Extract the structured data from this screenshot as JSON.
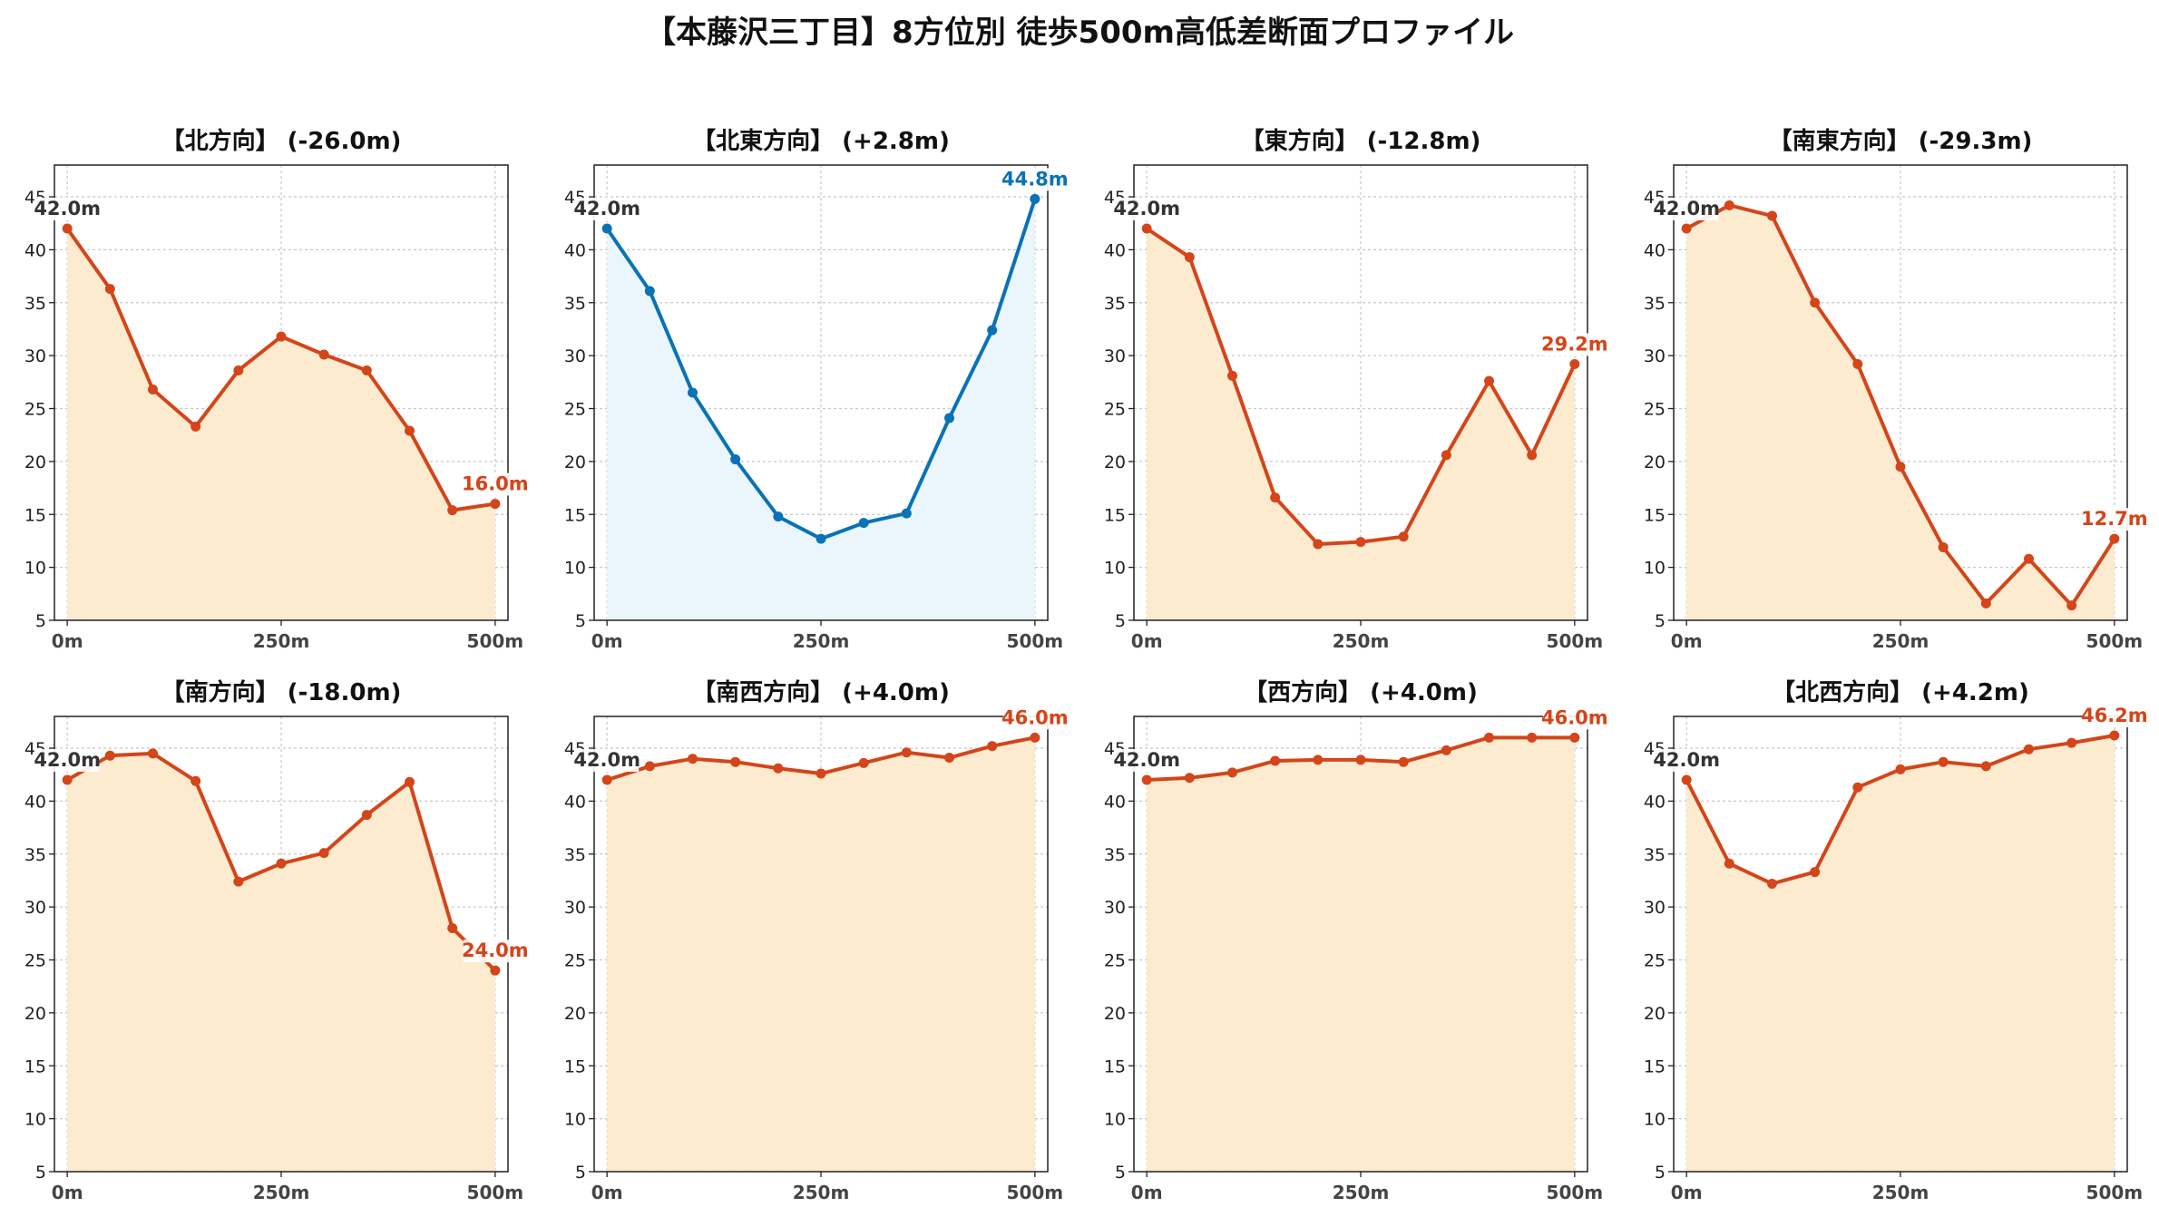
{
  "title": "【本藤沢三丁目】8方位別 徒歩500m高低差断面プロファイル",
  "colors": {
    "down_line": "#d4451a",
    "down_fill": "#fdebd0",
    "up_line": "#0a72b5",
    "up_fill": "#eaf6fb",
    "start_label": "#333333"
  },
  "chart_data": [
    {
      "type": "area",
      "title": "【北方向】 (-26.0m)",
      "theme": "down",
      "x": [
        0,
        50,
        100,
        150,
        200,
        250,
        300,
        350,
        400,
        450,
        500
      ],
      "values": [
        42.0,
        36.3,
        26.8,
        23.3,
        28.6,
        31.8,
        30.1,
        28.6,
        22.9,
        15.4,
        16.0
      ],
      "start_label": "42.0m",
      "end_label": "16.0m",
      "xticks": [
        0,
        250,
        500
      ],
      "xtick_labels": [
        "0m",
        "250m",
        "500m"
      ],
      "yticks": [
        5,
        10,
        15,
        20,
        25,
        30,
        35,
        40,
        45
      ],
      "ylim": [
        5,
        48
      ],
      "grid": true
    },
    {
      "type": "area",
      "title": "【北東方向】 (+2.8m)",
      "theme": "up",
      "x": [
        0,
        50,
        100,
        150,
        200,
        250,
        300,
        350,
        400,
        450,
        500
      ],
      "values": [
        42.0,
        36.1,
        26.5,
        20.2,
        14.8,
        12.7,
        14.2,
        15.1,
        24.1,
        32.4,
        44.8
      ],
      "start_label": "42.0m",
      "end_label": "44.8m",
      "xticks": [
        0,
        250,
        500
      ],
      "xtick_labels": [
        "0m",
        "250m",
        "500m"
      ],
      "yticks": [
        5,
        10,
        15,
        20,
        25,
        30,
        35,
        40,
        45
      ],
      "ylim": [
        5,
        48
      ],
      "grid": true
    },
    {
      "type": "area",
      "title": "【東方向】 (-12.8m)",
      "theme": "down",
      "x": [
        0,
        50,
        100,
        150,
        200,
        250,
        300,
        350,
        400,
        450,
        500
      ],
      "values": [
        42.0,
        39.3,
        28.1,
        16.6,
        12.2,
        12.4,
        12.9,
        20.6,
        27.6,
        20.6,
        29.2
      ],
      "start_label": "42.0m",
      "end_label": "29.2m",
      "xticks": [
        0,
        250,
        500
      ],
      "xtick_labels": [
        "0m",
        "250m",
        "500m"
      ],
      "yticks": [
        5,
        10,
        15,
        20,
        25,
        30,
        35,
        40,
        45
      ],
      "ylim": [
        5,
        48
      ],
      "grid": true
    },
    {
      "type": "area",
      "title": "【南東方向】 (-29.3m)",
      "theme": "down",
      "x": [
        0,
        50,
        100,
        150,
        200,
        250,
        300,
        350,
        400,
        450,
        500
      ],
      "values": [
        42.0,
        44.2,
        43.2,
        35.0,
        29.2,
        19.5,
        11.9,
        6.6,
        10.8,
        6.4,
        12.7
      ],
      "start_label": "42.0m",
      "end_label": "12.7m",
      "xticks": [
        0,
        250,
        500
      ],
      "xtick_labels": [
        "0m",
        "250m",
        "500m"
      ],
      "yticks": [
        5,
        10,
        15,
        20,
        25,
        30,
        35,
        40,
        45
      ],
      "ylim": [
        5,
        48
      ],
      "grid": true
    },
    {
      "type": "area",
      "title": "【南方向】 (-18.0m)",
      "theme": "down",
      "x": [
        0,
        50,
        100,
        150,
        200,
        250,
        300,
        350,
        400,
        450,
        500
      ],
      "values": [
        42.0,
        44.3,
        44.5,
        41.9,
        32.4,
        34.1,
        35.1,
        38.7,
        41.8,
        28.0,
        24.0
      ],
      "start_label": "42.0m",
      "end_label": "24.0m",
      "xticks": [
        0,
        250,
        500
      ],
      "xtick_labels": [
        "0m",
        "250m",
        "500m"
      ],
      "yticks": [
        5,
        10,
        15,
        20,
        25,
        30,
        35,
        40,
        45
      ],
      "ylim": [
        5,
        48
      ],
      "grid": true
    },
    {
      "type": "area",
      "title": "【南西方向】 (+4.0m)",
      "theme": "down",
      "x": [
        0,
        50,
        100,
        150,
        200,
        250,
        300,
        350,
        400,
        450,
        500
      ],
      "values": [
        42.0,
        43.3,
        44.0,
        43.7,
        43.1,
        42.6,
        43.6,
        44.6,
        44.1,
        45.2,
        46.0
      ],
      "start_label": "42.0m",
      "end_label": "46.0m",
      "xticks": [
        0,
        250,
        500
      ],
      "xtick_labels": [
        "0m",
        "250m",
        "500m"
      ],
      "yticks": [
        5,
        10,
        15,
        20,
        25,
        30,
        35,
        40,
        45
      ],
      "ylim": [
        5,
        48
      ],
      "grid": true
    },
    {
      "type": "area",
      "title": "【西方向】 (+4.0m)",
      "theme": "down",
      "x": [
        0,
        50,
        100,
        150,
        200,
        250,
        300,
        350,
        400,
        450,
        500
      ],
      "values": [
        42.0,
        42.2,
        42.7,
        43.8,
        43.9,
        43.9,
        43.7,
        44.8,
        46.0,
        46.0,
        46.0
      ],
      "start_label": "42.0m",
      "end_label": "46.0m",
      "xticks": [
        0,
        250,
        500
      ],
      "xtick_labels": [
        "0m",
        "250m",
        "500m"
      ],
      "yticks": [
        5,
        10,
        15,
        20,
        25,
        30,
        35,
        40,
        45
      ],
      "ylim": [
        5,
        48
      ],
      "grid": true
    },
    {
      "type": "area",
      "title": "【北西方向】 (+4.2m)",
      "theme": "down",
      "x": [
        0,
        50,
        100,
        150,
        200,
        250,
        300,
        350,
        400,
        450,
        500
      ],
      "values": [
        42.0,
        34.1,
        32.2,
        33.3,
        41.3,
        43.0,
        43.7,
        43.3,
        44.9,
        45.5,
        46.2
      ],
      "start_label": "42.0m",
      "end_label": "46.2m",
      "xticks": [
        0,
        250,
        500
      ],
      "xtick_labels": [
        "0m",
        "250m",
        "500m"
      ],
      "yticks": [
        5,
        10,
        15,
        20,
        25,
        30,
        35,
        40,
        45
      ],
      "ylim": [
        5,
        48
      ],
      "grid": true
    }
  ]
}
